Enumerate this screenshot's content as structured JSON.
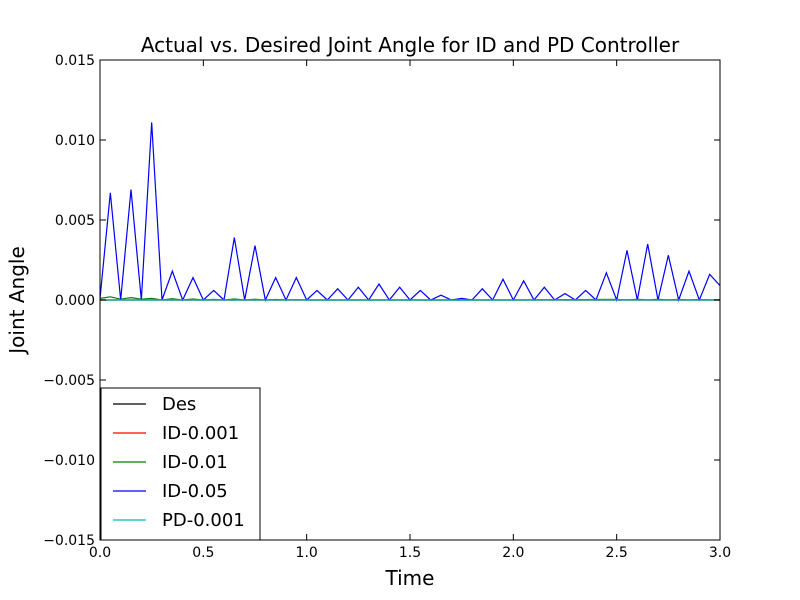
{
  "chart_data": {
    "type": "line",
    "title": "Actual vs. Desired Joint Angle for ID and PD Controller",
    "xlabel": "Time",
    "ylabel": "Joint Angle",
    "xlim": [
      0.0,
      3.0
    ],
    "ylim": [
      -0.015,
      0.015
    ],
    "xticks": [
      "0.0",
      "0.5",
      "1.0",
      "1.5",
      "2.0",
      "2.5",
      "3.0"
    ],
    "yticks": [
      "−0.015",
      "−0.010",
      "−0.005",
      "0.000",
      "0.005",
      "0.010",
      "0.015"
    ],
    "grid": false,
    "legend_position": "lower-left",
    "series": [
      {
        "name": "Des",
        "color": "#000000",
        "x": [
          0.0,
          3.0
        ],
        "y": [
          0.0,
          0.0
        ]
      },
      {
        "name": "ID-0.001",
        "color": "#ff0000",
        "x": [
          0.0,
          3.0
        ],
        "y": [
          0.0,
          0.0
        ]
      },
      {
        "name": "ID-0.01",
        "color": "#007f00",
        "x": [
          0.0,
          0.05,
          0.1,
          0.15,
          0.2,
          0.25,
          0.3,
          0.35,
          0.4,
          0.45,
          0.5,
          0.55,
          0.6,
          0.65,
          0.7,
          0.75,
          0.8,
          0.85,
          0.9,
          0.95,
          1.0,
          1.5,
          2.0,
          2.5,
          2.55,
          2.6,
          2.65,
          2.7,
          2.75,
          2.8,
          2.85,
          2.9,
          2.95,
          3.0
        ],
        "y": [
          0.0001,
          0.0002,
          5e-05,
          0.00015,
          5e-05,
          0.0001,
          0.0,
          8e-05,
          0.0,
          6e-05,
          0.0,
          4e-05,
          0.0,
          6e-05,
          0.0,
          5e-05,
          0.0,
          3e-05,
          0.0,
          2e-05,
          0.0,
          0.0,
          0.0,
          4e-05,
          0.0,
          5e-05,
          0.0,
          5e-05,
          0.0,
          4e-05,
          0.0,
          3e-05,
          0.0,
          2e-05
        ]
      },
      {
        "name": "ID-0.05",
        "color": "#0000ff",
        "x": [
          0.0,
          0.05,
          0.1,
          0.15,
          0.2,
          0.25,
          0.3,
          0.35,
          0.4,
          0.45,
          0.5,
          0.55,
          0.6,
          0.65,
          0.7,
          0.75,
          0.8,
          0.85,
          0.9,
          0.95,
          1.0,
          1.05,
          1.1,
          1.15,
          1.2,
          1.25,
          1.3,
          1.35,
          1.4,
          1.45,
          1.5,
          1.55,
          1.6,
          1.65,
          1.7,
          1.75,
          1.8,
          1.85,
          1.9,
          1.95,
          2.0,
          2.05,
          2.1,
          2.15,
          2.2,
          2.25,
          2.3,
          2.35,
          2.4,
          2.45,
          2.5,
          2.55,
          2.6,
          2.65,
          2.7,
          2.75,
          2.8,
          2.85,
          2.9,
          2.95,
          3.0
        ],
        "y": [
          0.0001,
          0.0067,
          0.0,
          0.0069,
          0.0,
          0.0111,
          0.0,
          0.0018,
          0.0,
          0.0014,
          0.0,
          0.0006,
          0.0,
          0.0039,
          0.0,
          0.0034,
          0.0,
          0.0014,
          0.0,
          0.0014,
          0.0,
          0.0006,
          0.0,
          0.0007,
          0.0,
          0.0008,
          0.0,
          0.001,
          0.0,
          0.0008,
          0.0,
          0.0006,
          0.0,
          0.0003,
          0.0,
          0.0001,
          0.0,
          0.0007,
          0.0,
          0.0013,
          0.0,
          0.0012,
          0.0,
          0.0008,
          0.0,
          0.0004,
          0.0,
          0.0006,
          0.0,
          0.0017,
          0.0,
          0.0031,
          0.0,
          0.0035,
          0.0,
          0.0028,
          0.0,
          0.0018,
          0.0,
          0.0016,
          0.0009
        ]
      },
      {
        "name": "PD-0.001",
        "color": "#00bfbf",
        "x": [
          0.0,
          3.0
        ],
        "y": [
          0.0,
          0.0
        ]
      }
    ]
  }
}
